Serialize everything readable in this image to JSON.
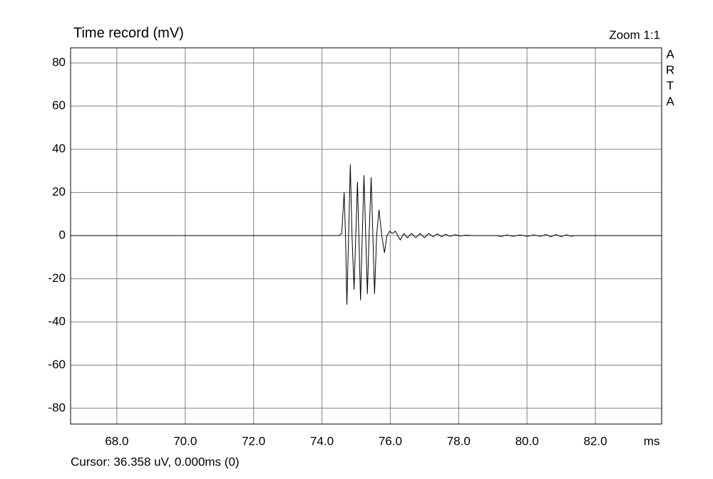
{
  "chart_data": {
    "type": "line",
    "title": "Time record (mV)",
    "zoom_label": "Zoom 1:1",
    "brand": [
      "A",
      "R",
      "T",
      "A"
    ],
    "x_label": "ms",
    "status": "Cursor: 36.358 uV, 0.000ms (0)",
    "xlim": [
      66.646,
      83.94
    ],
    "ylim": [
      -87.3,
      87
    ],
    "xticks": [
      {
        "value": 68,
        "label": "68.0"
      },
      {
        "value": 70,
        "label": "70.0"
      },
      {
        "value": 72,
        "label": "72.0"
      },
      {
        "value": 74,
        "label": "74.0"
      },
      {
        "value": 76,
        "label": "76.0"
      },
      {
        "value": 78,
        "label": "78.0"
      },
      {
        "value": 80,
        "label": "80.0"
      },
      {
        "value": 82,
        "label": "82.0"
      }
    ],
    "yticks": [
      80,
      60,
      40,
      20,
      0,
      -20,
      -40,
      -60,
      -80
    ],
    "grid": true,
    "color": "#000000",
    "x": [
      66.646,
      74.5,
      74.58,
      74.65,
      74.69,
      74.73,
      74.78,
      74.83,
      74.88,
      74.94,
      74.99,
      75.04,
      75.08,
      75.13,
      75.18,
      75.23,
      75.28,
      75.33,
      75.38,
      75.44,
      75.49,
      75.54,
      75.6,
      75.67,
      75.75,
      75.83,
      75.9,
      75.98,
      76.06,
      76.15,
      76.22,
      76.29,
      76.4,
      76.5,
      76.62,
      76.75,
      76.87,
      77.0,
      77.12,
      77.25,
      77.38,
      77.5,
      77.62,
      77.75,
      77.9,
      78.05,
      78.2,
      78.4,
      79.1,
      79.25,
      79.4,
      79.6,
      79.8,
      80.0,
      80.2,
      80.4,
      80.55,
      80.7,
      80.85,
      81.0,
      81.15,
      81.3,
      81.4,
      83.94
    ],
    "values": [
      0,
      0,
      1,
      20,
      0,
      -32,
      0,
      33,
      0,
      -25,
      0,
      25,
      0,
      -30,
      0,
      28,
      0,
      -27,
      0,
      27,
      0,
      -27,
      0,
      12,
      0,
      -8,
      0,
      2,
      1,
      2,
      0,
      -2,
      1,
      -1,
      1,
      -1,
      1,
      -1,
      1,
      -0.5,
      0.8,
      -0.5,
      0.6,
      -0.3,
      0.4,
      -0.2,
      0.2,
      0,
      0,
      -0.4,
      0.3,
      -0.3,
      0.3,
      -0.3,
      0.3,
      -0.3,
      0.5,
      -0.5,
      0.5,
      -0.5,
      0.4,
      -0.3,
      0,
      0
    ]
  }
}
